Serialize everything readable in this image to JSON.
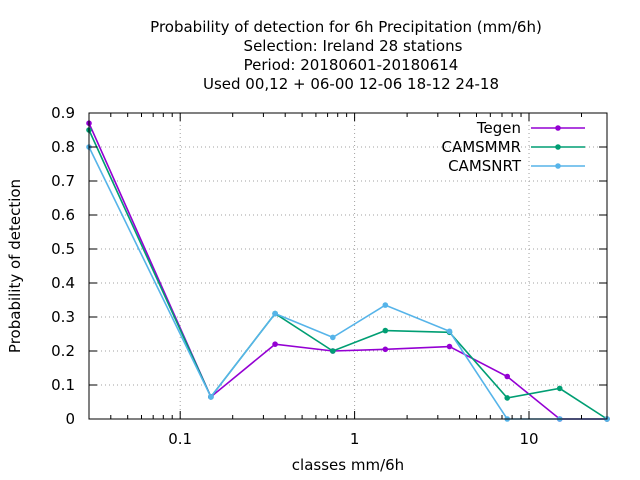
{
  "chart_data": {
    "type": "line",
    "title_lines": [
      "Probability of detection  for 6h Precipitation (mm/6h)",
      "Selection: Ireland      28 stations",
      "Period: 20180601-20180614",
      "Used  00,12  + 06-00 12-06 18-12 24-18"
    ],
    "xlabel": "classes mm/6h",
    "ylabel": "Probability of detection",
    "x_scale": "log",
    "xlim": [
      0.03,
      28
    ],
    "ylim": [
      0,
      0.9
    ],
    "x_ticks": [
      0.1,
      1,
      10
    ],
    "x_tick_labels": [
      "0.1",
      "1",
      "10"
    ],
    "y_ticks": [
      0,
      0.1,
      0.2,
      0.3,
      0.4,
      0.5,
      0.6,
      0.7,
      0.8,
      0.9
    ],
    "y_tick_labels": [
      "0",
      "0.1",
      "0.2",
      "0.3",
      "0.4",
      "0.5",
      "0.6",
      "0.7",
      "0.8",
      "0.9"
    ],
    "grid": true,
    "legend_position": "top-right",
    "x": [
      0.03,
      0.15,
      0.35,
      0.75,
      1.5,
      3.5,
      7.5,
      15,
      28
    ],
    "series": [
      {
        "name": "Tegen",
        "color": "#9400d3",
        "values": [
          0.87,
          0.065,
          0.22,
          0.2,
          0.205,
          0.213,
          0.125,
          0.0,
          0.0
        ]
      },
      {
        "name": "CAMSMMR",
        "color": "#009e73",
        "values": [
          0.85,
          0.065,
          0.31,
          0.2,
          0.26,
          0.255,
          0.062,
          0.09,
          0.0
        ]
      },
      {
        "name": "CAMSNRT",
        "color": "#56b4e9",
        "values": [
          0.8,
          0.065,
          0.31,
          0.24,
          0.335,
          0.258,
          0.0,
          0.0,
          0.0
        ]
      }
    ]
  }
}
